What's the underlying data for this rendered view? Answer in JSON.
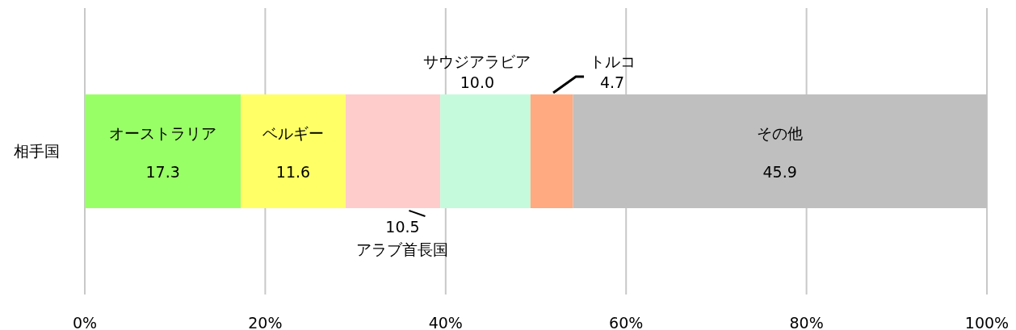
{
  "chart_data": {
    "type": "bar",
    "orientation": "horizontal",
    "stacked": true,
    "categories": [
      "相手国"
    ],
    "series": [
      {
        "name": "オーストラリア",
        "color": "#99ff66",
        "values": [
          17.3
        ],
        "value_labels": [
          "17.3"
        ]
      },
      {
        "name": "ベルギー",
        "color": "#ffff66",
        "values": [
          11.6
        ],
        "value_labels": [
          "11.6"
        ]
      },
      {
        "name": "アラブ首長国",
        "color": "#ffcccc",
        "values": [
          10.5
        ],
        "value_labels": [
          "10.5"
        ]
      },
      {
        "name": "サウジアラビア",
        "color": "#c6fadc",
        "values": [
          10.0
        ],
        "value_labels": [
          "10.0"
        ]
      },
      {
        "name": "トルコ",
        "color": "#ffaa80",
        "values": [
          4.7
        ],
        "value_labels": [
          "4.7"
        ]
      },
      {
        "name": "その他",
        "color": "#bfbfbf",
        "values": [
          45.9
        ],
        "value_labels": [
          "45.9"
        ]
      }
    ],
    "grid": "x",
    "xlim": [
      0,
      100
    ],
    "xticks": [
      {
        "value": 0,
        "label": "0%"
      },
      {
        "value": 20,
        "label": "20%"
      },
      {
        "value": 40,
        "label": "40%"
      },
      {
        "value": 60,
        "label": "60%"
      },
      {
        "value": 80,
        "label": "80%"
      },
      {
        "value": 100,
        "label": "100%"
      }
    ]
  }
}
